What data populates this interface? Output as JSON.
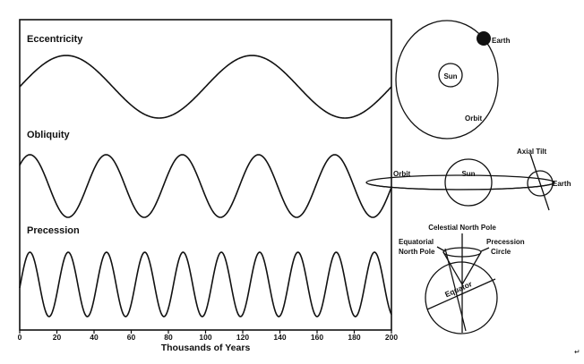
{
  "chart_data": {
    "type": "line",
    "xlabel": "Thousands of Years",
    "xlim": [
      0,
      200
    ],
    "x_ticks": [
      "0",
      "20",
      "40",
      "60",
      "80",
      "100",
      "120",
      "140",
      "160",
      "180",
      "200"
    ],
    "series": [
      {
        "name": "Eccentricity",
        "period": 100,
        "phase": 25
      },
      {
        "name": "Obliquity",
        "period": 41,
        "phase": 5.5
      },
      {
        "name": "Precession",
        "period": 20.6,
        "phase": 5.5
      }
    ]
  },
  "diagrams": {
    "orbit": {
      "sun": "Sun",
      "earth": "Earth",
      "orbit": "Orbit"
    },
    "tilt": {
      "orbit": "Orbit",
      "sun": "Sun",
      "axial_tilt": "Axial Tilt",
      "earth": "Earth"
    },
    "precession": {
      "celestial_north_pole": "Celestial North Pole",
      "equatorial_line1": "Equatorial",
      "equatorial_line2": "North Pole",
      "precession_line1": "Precession",
      "precession_line2": "Circle",
      "equator": "Equator"
    }
  },
  "corner_mark": "↵"
}
